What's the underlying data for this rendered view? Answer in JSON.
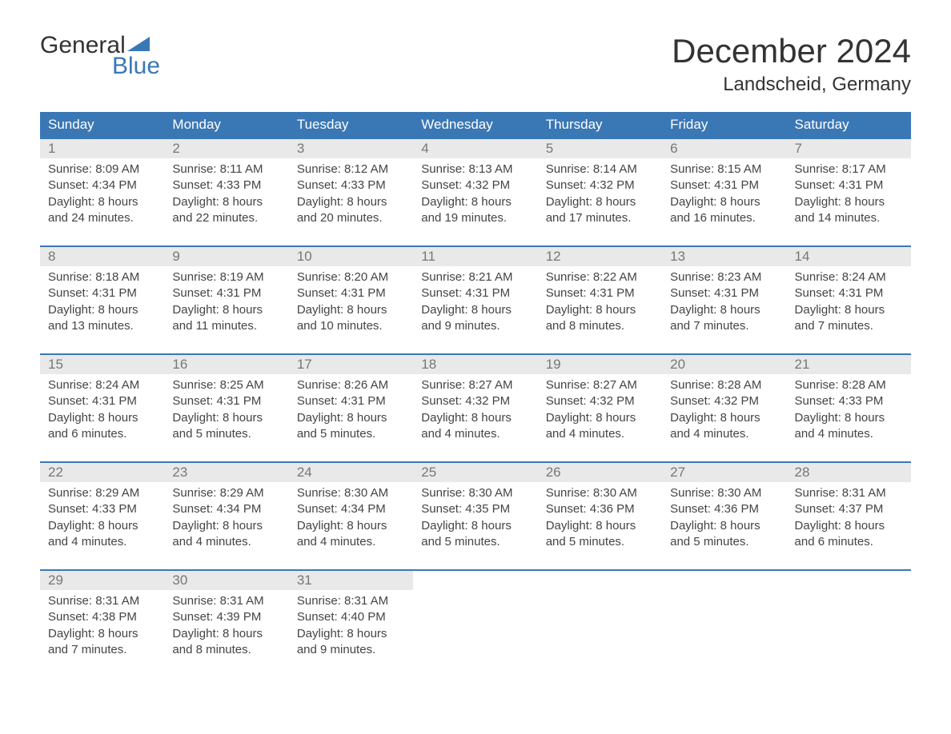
{
  "logo": {
    "line1": "General",
    "line2": "Blue"
  },
  "title": "December 2024",
  "location": "Landscheid, Germany",
  "colors": {
    "header_bg": "#3a78b5",
    "header_text": "#ffffff",
    "daynum_bg": "#e9e9e9",
    "daynum_text": "#777777",
    "body_text": "#444444",
    "accent": "#3a78b5",
    "page_bg": "#ffffff"
  },
  "typography": {
    "title_fontsize": 42,
    "location_fontsize": 24,
    "header_fontsize": 17,
    "daynum_fontsize": 17,
    "content_fontsize": 15
  },
  "day_names": [
    "Sunday",
    "Monday",
    "Tuesday",
    "Wednesday",
    "Thursday",
    "Friday",
    "Saturday"
  ],
  "weeks": [
    [
      {
        "day": "1",
        "sunrise": "Sunrise: 8:09 AM",
        "sunset": "Sunset: 4:34 PM",
        "daylight1": "Daylight: 8 hours",
        "daylight2": "and 24 minutes."
      },
      {
        "day": "2",
        "sunrise": "Sunrise: 8:11 AM",
        "sunset": "Sunset: 4:33 PM",
        "daylight1": "Daylight: 8 hours",
        "daylight2": "and 22 minutes."
      },
      {
        "day": "3",
        "sunrise": "Sunrise: 8:12 AM",
        "sunset": "Sunset: 4:33 PM",
        "daylight1": "Daylight: 8 hours",
        "daylight2": "and 20 minutes."
      },
      {
        "day": "4",
        "sunrise": "Sunrise: 8:13 AM",
        "sunset": "Sunset: 4:32 PM",
        "daylight1": "Daylight: 8 hours",
        "daylight2": "and 19 minutes."
      },
      {
        "day": "5",
        "sunrise": "Sunrise: 8:14 AM",
        "sunset": "Sunset: 4:32 PM",
        "daylight1": "Daylight: 8 hours",
        "daylight2": "and 17 minutes."
      },
      {
        "day": "6",
        "sunrise": "Sunrise: 8:15 AM",
        "sunset": "Sunset: 4:31 PM",
        "daylight1": "Daylight: 8 hours",
        "daylight2": "and 16 minutes."
      },
      {
        "day": "7",
        "sunrise": "Sunrise: 8:17 AM",
        "sunset": "Sunset: 4:31 PM",
        "daylight1": "Daylight: 8 hours",
        "daylight2": "and 14 minutes."
      }
    ],
    [
      {
        "day": "8",
        "sunrise": "Sunrise: 8:18 AM",
        "sunset": "Sunset: 4:31 PM",
        "daylight1": "Daylight: 8 hours",
        "daylight2": "and 13 minutes."
      },
      {
        "day": "9",
        "sunrise": "Sunrise: 8:19 AM",
        "sunset": "Sunset: 4:31 PM",
        "daylight1": "Daylight: 8 hours",
        "daylight2": "and 11 minutes."
      },
      {
        "day": "10",
        "sunrise": "Sunrise: 8:20 AM",
        "sunset": "Sunset: 4:31 PM",
        "daylight1": "Daylight: 8 hours",
        "daylight2": "and 10 minutes."
      },
      {
        "day": "11",
        "sunrise": "Sunrise: 8:21 AM",
        "sunset": "Sunset: 4:31 PM",
        "daylight1": "Daylight: 8 hours",
        "daylight2": "and 9 minutes."
      },
      {
        "day": "12",
        "sunrise": "Sunrise: 8:22 AM",
        "sunset": "Sunset: 4:31 PM",
        "daylight1": "Daylight: 8 hours",
        "daylight2": "and 8 minutes."
      },
      {
        "day": "13",
        "sunrise": "Sunrise: 8:23 AM",
        "sunset": "Sunset: 4:31 PM",
        "daylight1": "Daylight: 8 hours",
        "daylight2": "and 7 minutes."
      },
      {
        "day": "14",
        "sunrise": "Sunrise: 8:24 AM",
        "sunset": "Sunset: 4:31 PM",
        "daylight1": "Daylight: 8 hours",
        "daylight2": "and 7 minutes."
      }
    ],
    [
      {
        "day": "15",
        "sunrise": "Sunrise: 8:24 AM",
        "sunset": "Sunset: 4:31 PM",
        "daylight1": "Daylight: 8 hours",
        "daylight2": "and 6 minutes."
      },
      {
        "day": "16",
        "sunrise": "Sunrise: 8:25 AM",
        "sunset": "Sunset: 4:31 PM",
        "daylight1": "Daylight: 8 hours",
        "daylight2": "and 5 minutes."
      },
      {
        "day": "17",
        "sunrise": "Sunrise: 8:26 AM",
        "sunset": "Sunset: 4:31 PM",
        "daylight1": "Daylight: 8 hours",
        "daylight2": "and 5 minutes."
      },
      {
        "day": "18",
        "sunrise": "Sunrise: 8:27 AM",
        "sunset": "Sunset: 4:32 PM",
        "daylight1": "Daylight: 8 hours",
        "daylight2": "and 4 minutes."
      },
      {
        "day": "19",
        "sunrise": "Sunrise: 8:27 AM",
        "sunset": "Sunset: 4:32 PM",
        "daylight1": "Daylight: 8 hours",
        "daylight2": "and 4 minutes."
      },
      {
        "day": "20",
        "sunrise": "Sunrise: 8:28 AM",
        "sunset": "Sunset: 4:32 PM",
        "daylight1": "Daylight: 8 hours",
        "daylight2": "and 4 minutes."
      },
      {
        "day": "21",
        "sunrise": "Sunrise: 8:28 AM",
        "sunset": "Sunset: 4:33 PM",
        "daylight1": "Daylight: 8 hours",
        "daylight2": "and 4 minutes."
      }
    ],
    [
      {
        "day": "22",
        "sunrise": "Sunrise: 8:29 AM",
        "sunset": "Sunset: 4:33 PM",
        "daylight1": "Daylight: 8 hours",
        "daylight2": "and 4 minutes."
      },
      {
        "day": "23",
        "sunrise": "Sunrise: 8:29 AM",
        "sunset": "Sunset: 4:34 PM",
        "daylight1": "Daylight: 8 hours",
        "daylight2": "and 4 minutes."
      },
      {
        "day": "24",
        "sunrise": "Sunrise: 8:30 AM",
        "sunset": "Sunset: 4:34 PM",
        "daylight1": "Daylight: 8 hours",
        "daylight2": "and 4 minutes."
      },
      {
        "day": "25",
        "sunrise": "Sunrise: 8:30 AM",
        "sunset": "Sunset: 4:35 PM",
        "daylight1": "Daylight: 8 hours",
        "daylight2": "and 5 minutes."
      },
      {
        "day": "26",
        "sunrise": "Sunrise: 8:30 AM",
        "sunset": "Sunset: 4:36 PM",
        "daylight1": "Daylight: 8 hours",
        "daylight2": "and 5 minutes."
      },
      {
        "day": "27",
        "sunrise": "Sunrise: 8:30 AM",
        "sunset": "Sunset: 4:36 PM",
        "daylight1": "Daylight: 8 hours",
        "daylight2": "and 5 minutes."
      },
      {
        "day": "28",
        "sunrise": "Sunrise: 8:31 AM",
        "sunset": "Sunset: 4:37 PM",
        "daylight1": "Daylight: 8 hours",
        "daylight2": "and 6 minutes."
      }
    ],
    [
      {
        "day": "29",
        "sunrise": "Sunrise: 8:31 AM",
        "sunset": "Sunset: 4:38 PM",
        "daylight1": "Daylight: 8 hours",
        "daylight2": "and 7 minutes."
      },
      {
        "day": "30",
        "sunrise": "Sunrise: 8:31 AM",
        "sunset": "Sunset: 4:39 PM",
        "daylight1": "Daylight: 8 hours",
        "daylight2": "and 8 minutes."
      },
      {
        "day": "31",
        "sunrise": "Sunrise: 8:31 AM",
        "sunset": "Sunset: 4:40 PM",
        "daylight1": "Daylight: 8 hours",
        "daylight2": "and 9 minutes."
      },
      null,
      null,
      null,
      null
    ]
  ]
}
